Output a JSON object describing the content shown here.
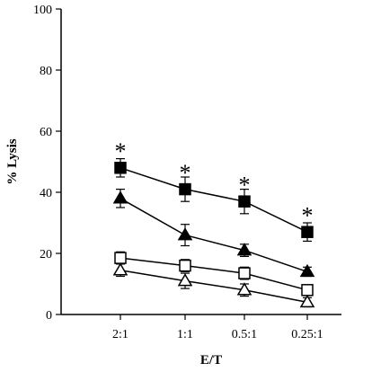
{
  "chart_data": {
    "type": "line",
    "title": "",
    "xlabel": "E/T",
    "ylabel": "% Lysis",
    "categories": [
      "2:1",
      "1:1",
      "0.5:1",
      "0.25:1"
    ],
    "ylim": [
      0,
      100
    ],
    "yticks": [
      0,
      20,
      40,
      60,
      80,
      100
    ],
    "grid": false,
    "series": [
      {
        "marker": "filled-square",
        "color": "#000000",
        "values": [
          48,
          41,
          37,
          27
        ],
        "errors": [
          3,
          4,
          4,
          3
        ]
      },
      {
        "marker": "filled-triangle",
        "color": "#000000",
        "values": [
          38,
          26,
          21,
          14
        ],
        "errors": [
          3,
          3.5,
          2,
          1.5
        ]
      },
      {
        "marker": "open-square",
        "color": "#000000",
        "values": [
          18.5,
          16,
          13.5,
          8
        ],
        "errors": [
          2,
          2,
          2,
          1.5
        ]
      },
      {
        "marker": "open-triangle",
        "color": "#000000",
        "values": [
          14.5,
          11,
          8,
          4
        ],
        "errors": [
          2,
          2.5,
          2,
          1.5
        ]
      }
    ],
    "annotations": [
      {
        "text": "*",
        "category": "2:1",
        "y": 55
      },
      {
        "text": "*",
        "category": "1:1",
        "y": 48
      },
      {
        "text": "*",
        "category": "0.5:1",
        "y": 44
      },
      {
        "text": "*",
        "category": "0.25:1",
        "y": 34
      }
    ]
  }
}
